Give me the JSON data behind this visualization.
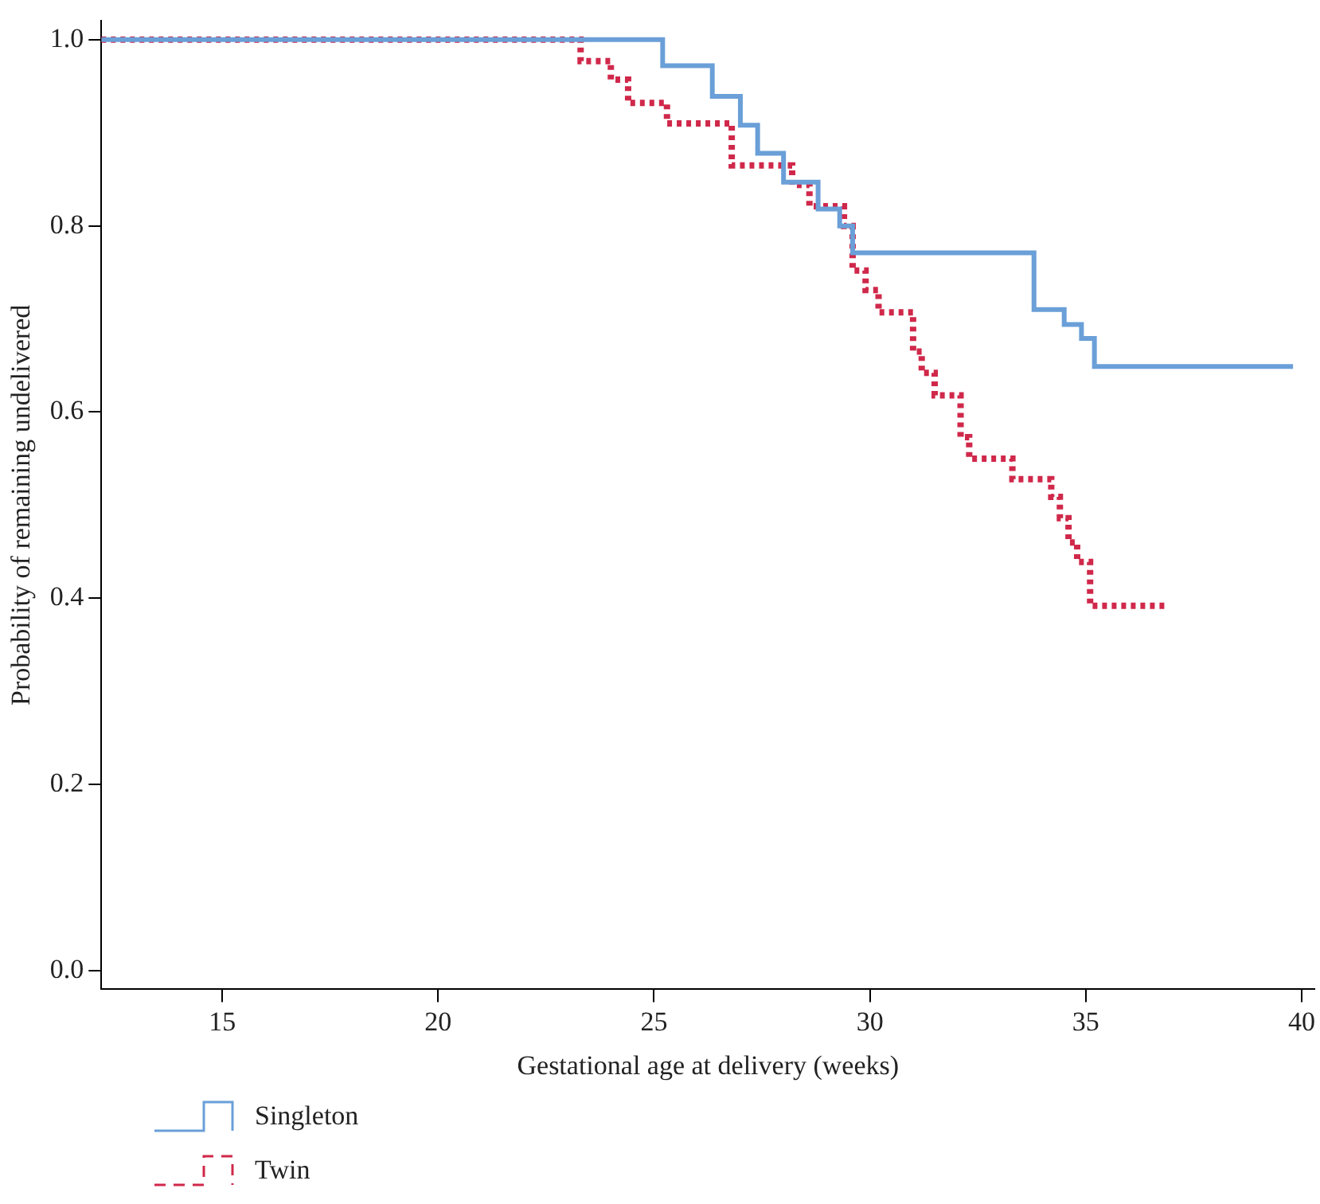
{
  "chart_data": {
    "type": "step",
    "xlabel": "Gestational age at delivery (weeks)",
    "ylabel": "Probability of remaining undelivered",
    "xlim": [
      12.2,
      40.3
    ],
    "xticks": [
      15,
      20,
      25,
      30,
      35,
      40
    ],
    "ylim": [
      -0.02,
      1.02
    ],
    "yticks": [
      {
        "value": 0,
        "label": "0.0"
      },
      {
        "value": 0.2,
        "label": "0.2"
      },
      {
        "value": 0.4,
        "label": "0.4"
      },
      {
        "value": 0.6,
        "label": "0.6"
      },
      {
        "value": 0.8,
        "label": "0.8"
      },
      {
        "value": 1,
        "label": "1.0"
      }
    ],
    "grid": false,
    "legend": "bottom left",
    "series": [
      {
        "name": "Singleton",
        "color": "#6a9fd8",
        "line_style": "solid",
        "x": [
          12.2,
          25.2,
          26.35,
          27.0,
          27.4,
          28.0,
          28.8,
          29.3,
          29.6,
          33.8,
          34.5,
          34.9,
          35.2,
          39.8
        ],
        "values": [
          1.0,
          0.972,
          0.939,
          0.908,
          0.878,
          0.847,
          0.818,
          0.8,
          0.771,
          0.71,
          0.694,
          0.679,
          0.649,
          0.649
        ]
      },
      {
        "name": "Twin",
        "color": "#d0284a",
        "line_style": "dotted",
        "x": [
          12.2,
          23.3,
          24.0,
          24.4,
          25.3,
          26.8,
          28.2,
          28.6,
          29.4,
          29.6,
          29.9,
          30.2,
          31.0,
          31.2,
          31.5,
          32.1,
          32.3,
          33.3,
          34.2,
          34.4,
          34.6,
          34.8,
          35.1,
          36.9
        ],
        "values": [
          1.0,
          0.977,
          0.957,
          0.932,
          0.91,
          0.865,
          0.844,
          0.821,
          0.8,
          0.752,
          0.731,
          0.707,
          0.665,
          0.642,
          0.618,
          0.573,
          0.55,
          0.528,
          0.509,
          0.486,
          0.46,
          0.439,
          0.392,
          0.392
        ]
      }
    ]
  }
}
